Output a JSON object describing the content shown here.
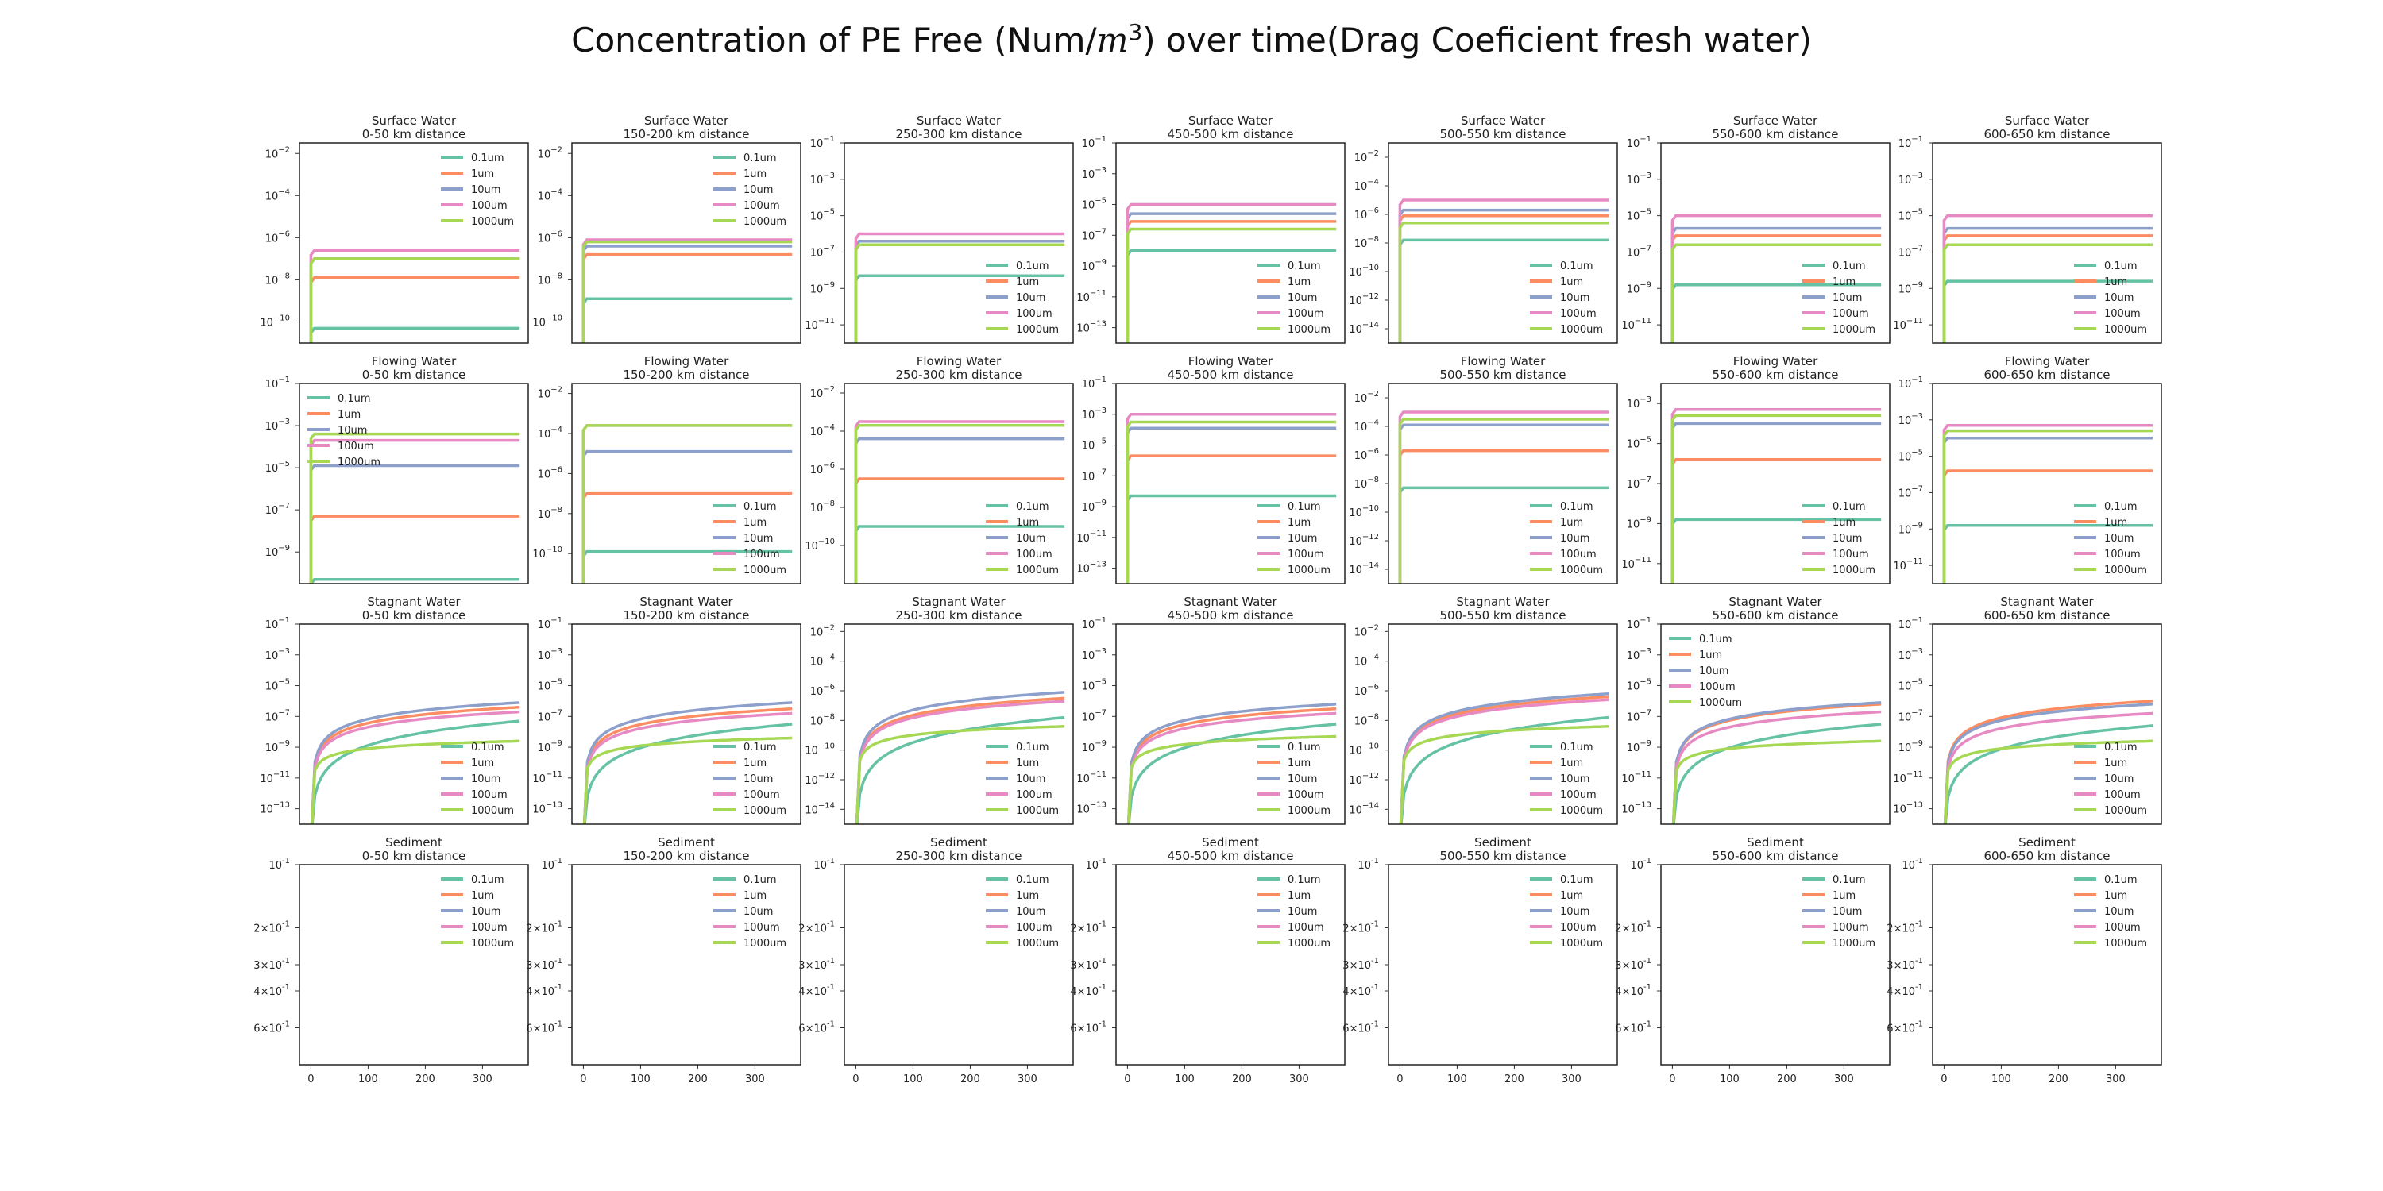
{
  "title_prefix": "Concentration of PE Free (Num/",
  "title_math": "m",
  "title_exp": "3",
  "title_suffix": ") over time(Drag Coeficient fresh water)",
  "chart_data": {
    "type": "line",
    "x_range": [
      -20,
      380
    ],
    "x_ticks": [
      0,
      100,
      200,
      300
    ],
    "y_scale": "log",
    "compartments": [
      "Surface Water",
      "Flowing Water",
      "Stagnant Water",
      "Sediment"
    ],
    "distances": [
      "0-50 km distance",
      "150-200 km distance",
      "250-300 km distance",
      "450-500 km distance",
      "500-550 km distance",
      "550-600 km distance",
      "600-650 km distance"
    ],
    "legend": [
      "0.1um",
      "1um",
      "10um",
      "100um",
      "1000um"
    ],
    "colors": [
      "#66c2a5",
      "#fc8d62",
      "#8da0cb",
      "#e78ac3",
      "#a6d854"
    ],
    "panels": [
      {
        "row": 0,
        "col": 0,
        "ylim": [
          -11,
          -1.5
        ],
        "ticks": [
          -2,
          -4,
          -6,
          -8,
          -10
        ],
        "legend_pos": "top-right",
        "kind": "flat",
        "levels": [
          -10.3,
          -7.9,
          -7.0,
          -6.6,
          -7.0
        ]
      },
      {
        "row": 0,
        "col": 1,
        "ylim": [
          -11,
          -1.5
        ],
        "ticks": [
          -2,
          -4,
          -6,
          -8,
          -10
        ],
        "legend_pos": "top-right",
        "kind": "flat",
        "levels": [
          -8.9,
          -6.8,
          -6.4,
          -6.1,
          -6.2
        ]
      },
      {
        "row": 0,
        "col": 2,
        "ylim": [
          -12,
          -1
        ],
        "ticks": [
          -1,
          -3,
          -5,
          -7,
          -9,
          -11
        ],
        "legend_pos": "bottom-right",
        "kind": "flat",
        "levels": [
          -8.3,
          -6.6,
          -6.4,
          -6.0,
          -6.6
        ]
      },
      {
        "row": 0,
        "col": 3,
        "ylim": [
          -14,
          -1
        ],
        "ticks": [
          -1,
          -3,
          -5,
          -7,
          -9,
          -11,
          -13
        ],
        "legend_pos": "bottom-right",
        "kind": "flat",
        "levels": [
          -8.0,
          -6.1,
          -5.6,
          -5.0,
          -6.6
        ]
      },
      {
        "row": 0,
        "col": 4,
        "ylim": [
          -15,
          -1
        ],
        "ticks": [
          -2,
          -4,
          -6,
          -8,
          -10,
          -12,
          -14
        ],
        "legend_pos": "bottom-right",
        "kind": "flat",
        "levels": [
          -7.8,
          -6.1,
          -5.7,
          -5.0,
          -6.6
        ]
      },
      {
        "row": 0,
        "col": 5,
        "ylim": [
          -12,
          -1
        ],
        "ticks": [
          -1,
          -3,
          -5,
          -7,
          -9,
          -11
        ],
        "legend_pos": "bottom-right",
        "kind": "flat",
        "levels": [
          -8.8,
          -6.1,
          -5.7,
          -5.0,
          -6.6
        ]
      },
      {
        "row": 0,
        "col": 6,
        "ylim": [
          -12,
          -1
        ],
        "ticks": [
          -1,
          -3,
          -5,
          -7,
          -9,
          -11
        ],
        "legend_pos": "bottom-right",
        "kind": "flat",
        "levels": [
          -8.6,
          -6.1,
          -5.7,
          -5.0,
          -6.6
        ]
      },
      {
        "row": 1,
        "col": 0,
        "ylim": [
          -10.5,
          -1
        ],
        "ticks": [
          -1,
          -3,
          -5,
          -7,
          -9
        ],
        "legend_pos": "top-left",
        "kind": "flat",
        "levels": [
          -10.3,
          -7.3,
          -4.9,
          -3.7,
          -3.4
        ]
      },
      {
        "row": 1,
        "col": 1,
        "ylim": [
          -11.5,
          -1.5
        ],
        "ticks": [
          -2,
          -4,
          -6,
          -8,
          -10
        ],
        "legend_pos": "bottom-right",
        "kind": "flat",
        "levels": [
          -9.9,
          -7.0,
          -4.9,
          -3.6,
          -3.6
        ]
      },
      {
        "row": 1,
        "col": 2,
        "ylim": [
          -12,
          -1.5
        ],
        "ticks": [
          -2,
          -4,
          -6,
          -8,
          -10
        ],
        "legend_pos": "bottom-right",
        "kind": "flat",
        "levels": [
          -9.0,
          -6.5,
          -4.4,
          -3.5,
          -3.7
        ]
      },
      {
        "row": 1,
        "col": 3,
        "ylim": [
          -14,
          -1
        ],
        "ticks": [
          -1,
          -3,
          -5,
          -7,
          -9,
          -11,
          -13
        ],
        "legend_pos": "bottom-right",
        "kind": "flat",
        "levels": [
          -8.3,
          -5.7,
          -3.9,
          -3.0,
          -3.5
        ]
      },
      {
        "row": 1,
        "col": 4,
        "ylim": [
          -15,
          -1
        ],
        "ticks": [
          -2,
          -4,
          -6,
          -8,
          -10,
          -12,
          -14
        ],
        "legend_pos": "bottom-right",
        "kind": "flat",
        "levels": [
          -8.3,
          -5.7,
          -3.9,
          -3.0,
          -3.5
        ]
      },
      {
        "row": 1,
        "col": 5,
        "ylim": [
          -12,
          -2
        ],
        "ticks": [
          -3,
          -5,
          -7,
          -9,
          -11
        ],
        "legend_pos": "bottom-right",
        "kind": "flat",
        "levels": [
          -8.8,
          -5.8,
          -4.0,
          -3.3,
          -3.6
        ]
      },
      {
        "row": 1,
        "col": 6,
        "ylim": [
          -12,
          -1
        ],
        "ticks": [
          -1,
          -3,
          -5,
          -7,
          -9,
          -11
        ],
        "legend_pos": "bottom-right",
        "kind": "flat",
        "levels": [
          -8.8,
          -5.8,
          -4.0,
          -3.3,
          -3.6
        ]
      },
      {
        "row": 2,
        "col": 0,
        "ylim": [
          -14,
          -1
        ],
        "ticks": [
          -1,
          -3,
          -5,
          -7,
          -9,
          -11,
          -13
        ],
        "legend_pos": "bottom-right",
        "kind": "growth",
        "levels": [
          -7.3,
          -6.4,
          -6.1,
          -6.7,
          -8.6
        ]
      },
      {
        "row": 2,
        "col": 1,
        "ylim": [
          -14,
          -1
        ],
        "ticks": [
          -1,
          -3,
          -5,
          -7,
          -9,
          -11,
          -13
        ],
        "legend_pos": "bottom-right",
        "kind": "growth",
        "levels": [
          -7.5,
          -6.5,
          -6.1,
          -6.8,
          -8.4
        ]
      },
      {
        "row": 2,
        "col": 2,
        "ylim": [
          -15,
          -1.5
        ],
        "ticks": [
          -2,
          -4,
          -6,
          -8,
          -10,
          -12,
          -14
        ],
        "legend_pos": "bottom-right",
        "kind": "growth",
        "levels": [
          -7.8,
          -6.5,
          -6.1,
          -6.7,
          -8.4
        ]
      },
      {
        "row": 2,
        "col": 3,
        "ylim": [
          -14,
          -1
        ],
        "ticks": [
          -1,
          -3,
          -5,
          -7,
          -9,
          -11,
          -13
        ],
        "legend_pos": "bottom-right",
        "kind": "growth",
        "levels": [
          -7.5,
          -6.5,
          -6.2,
          -6.8,
          -8.3
        ]
      },
      {
        "row": 2,
        "col": 4,
        "ylim": [
          -15,
          -1.5
        ],
        "ticks": [
          -2,
          -4,
          -6,
          -8,
          -10,
          -12,
          -14
        ],
        "legend_pos": "bottom-right",
        "kind": "growth",
        "levels": [
          -7.8,
          -6.4,
          -6.2,
          -6.6,
          -8.4
        ]
      },
      {
        "row": 2,
        "col": 5,
        "ylim": [
          -14,
          -1
        ],
        "ticks": [
          -1,
          -3,
          -5,
          -7,
          -9,
          -11,
          -13
        ],
        "legend_pos": "top-left",
        "kind": "growth",
        "levels": [
          -7.5,
          -6.2,
          -6.1,
          -6.7,
          -8.6
        ]
      },
      {
        "row": 2,
        "col": 6,
        "ylim": [
          -14,
          -1
        ],
        "ticks": [
          -1,
          -3,
          -5,
          -7,
          -9,
          -11,
          -13
        ],
        "legend_pos": "bottom-right",
        "kind": "growth",
        "levels": [
          -7.6,
          -6.0,
          -6.2,
          -6.8,
          -8.6
        ]
      },
      {
        "row": 3,
        "col": 0,
        "ylim": "sediment",
        "legend_pos": "top-right",
        "kind": "empty",
        "levels": []
      },
      {
        "row": 3,
        "col": 1,
        "ylim": "sediment",
        "legend_pos": "top-right",
        "kind": "empty",
        "levels": []
      },
      {
        "row": 3,
        "col": 2,
        "ylim": "sediment",
        "legend_pos": "top-right",
        "kind": "empty",
        "levels": []
      },
      {
        "row": 3,
        "col": 3,
        "ylim": "sediment",
        "legend_pos": "top-right",
        "kind": "empty",
        "levels": []
      },
      {
        "row": 3,
        "col": 4,
        "ylim": "sediment",
        "legend_pos": "top-right",
        "kind": "empty",
        "levels": []
      },
      {
        "row": 3,
        "col": 5,
        "ylim": "sediment",
        "legend_pos": "top-right",
        "kind": "empty",
        "levels": []
      },
      {
        "row": 3,
        "col": 6,
        "ylim": "sediment",
        "legend_pos": "top-right",
        "kind": "empty",
        "levels": []
      }
    ],
    "sediment_ticks": [
      "10^-1",
      "2×10^-1",
      "3×10^-1",
      "4×10^-1",
      "6×10^-1"
    ]
  }
}
